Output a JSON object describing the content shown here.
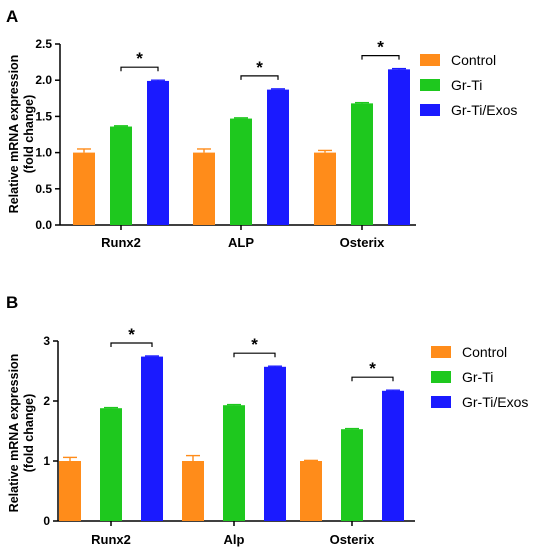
{
  "chart_data": [
    {
      "type": "bar",
      "panel": "A",
      "categories": [
        "Runx2",
        "ALP",
        "Osterix"
      ],
      "series": [
        {
          "name": "Control",
          "color": "#ff8c1a",
          "values": [
            1.0,
            1.0,
            1.0
          ],
          "errors": [
            0.05,
            0.05,
            0.03
          ]
        },
        {
          "name": "Gr-Ti",
          "color": "#1ec81e",
          "values": [
            1.36,
            1.47,
            1.68
          ],
          "errors": [
            0.01,
            0.01,
            0.01
          ]
        },
        {
          "name": "Gr-Ti/Exos",
          "color": "#1a1aff",
          "values": [
            1.99,
            1.87,
            2.15
          ],
          "errors": [
            0.01,
            0.01,
            0.01
          ]
        }
      ],
      "significance": [
        "*",
        "*",
        "*"
      ],
      "ylabel": [
        "Relative mRNA expression",
        "(fold change)"
      ],
      "ylim": [
        0,
        2.5
      ],
      "yticks": [
        "0.0",
        "0.5",
        "1.0",
        "1.5",
        "2.0",
        "2.5"
      ],
      "legend_position": "right",
      "grid": false
    },
    {
      "type": "bar",
      "panel": "B",
      "categories": [
        "Runx2",
        "Alp",
        "Osterix"
      ],
      "series": [
        {
          "name": "Control",
          "color": "#ff8c1a",
          "values": [
            1.0,
            1.0,
            1.0
          ],
          "errors": [
            0.06,
            0.09,
            0.01
          ]
        },
        {
          "name": "Gr-Ti",
          "color": "#1ec81e",
          "values": [
            1.88,
            1.93,
            1.53
          ],
          "errors": [
            0.01,
            0.01,
            0.01
          ]
        },
        {
          "name": "Gr-Ti/Exos",
          "color": "#1a1aff",
          "values": [
            2.74,
            2.57,
            2.17
          ],
          "errors": [
            0.01,
            0.01,
            0.01
          ]
        }
      ],
      "significance": [
        "*",
        "*",
        "*"
      ],
      "ylabel": [
        "Relative mRNA expression",
        "(fold change)"
      ],
      "ylim": [
        0,
        3
      ],
      "yticks": [
        "0",
        "1",
        "2",
        "3"
      ],
      "legend_position": "right",
      "grid": false
    }
  ]
}
